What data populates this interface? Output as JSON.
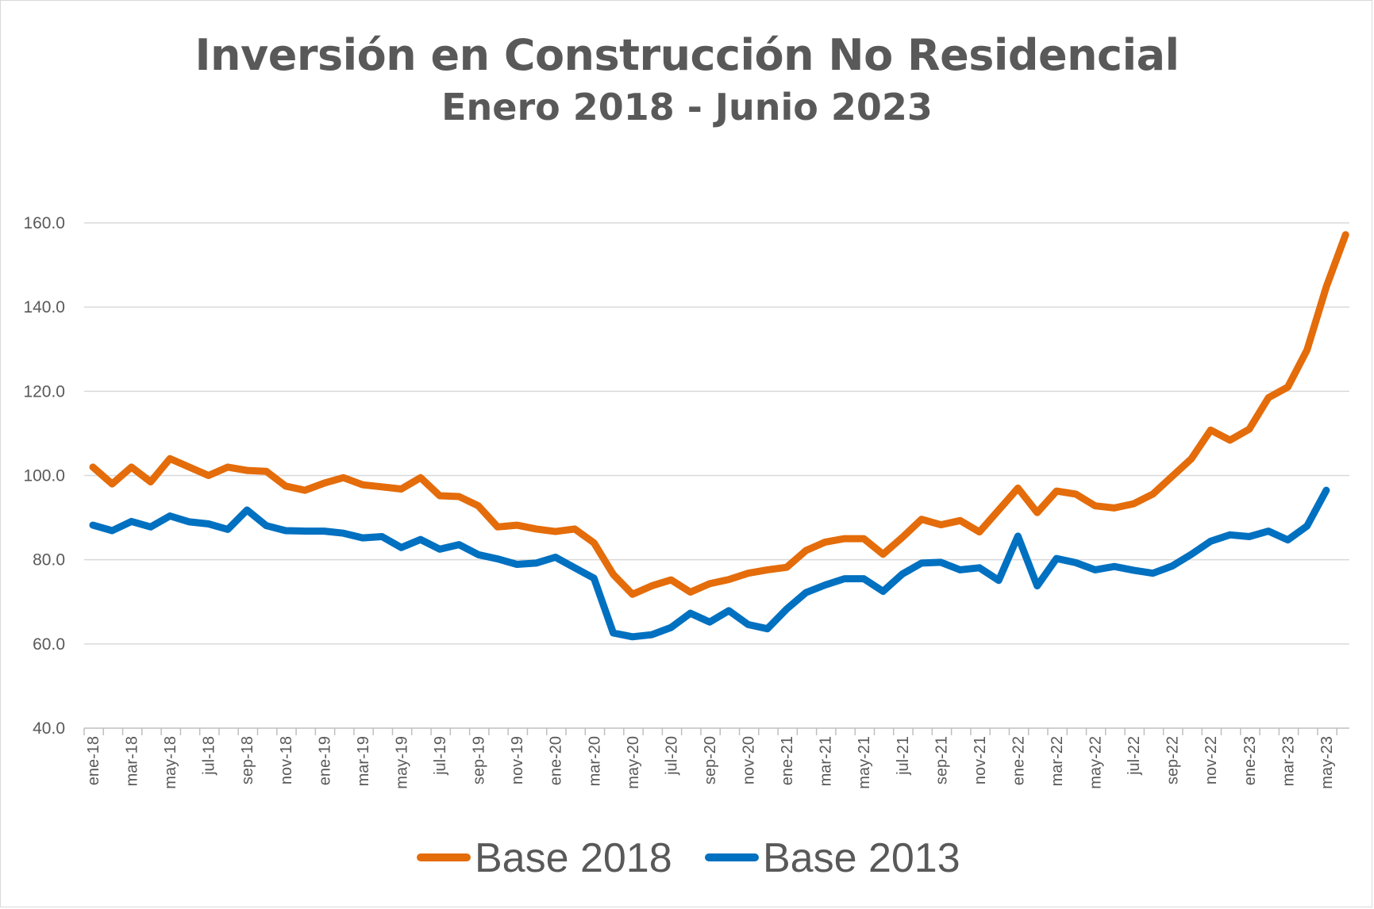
{
  "chart_data": {
    "type": "line",
    "title": "Inversión en Construcción No Residencial",
    "subtitle": "Enero 2018 - Junio 2023",
    "xlabel": "",
    "ylabel": "",
    "ylim": [
      40,
      160
    ],
    "yticks": [
      "40.0",
      "60.0",
      "80.0",
      "100.0",
      "120.0",
      "140.0",
      "160.0"
    ],
    "grid": true,
    "legend_position": "bottom",
    "tick_labels": [
      "ene-18",
      "mar-18",
      "may-18",
      "jul-18",
      "sep-18",
      "nov-18",
      "ene-19",
      "mar-19",
      "may-19",
      "jul-19",
      "sep-19",
      "nov-19",
      "ene-20",
      "mar-20",
      "may-20",
      "jul-20",
      "sep-20",
      "nov-20",
      "ene-21",
      "mar-21",
      "may-21",
      "jul-21",
      "sep-21",
      "nov-21",
      "ene-22",
      "mar-22",
      "may-22",
      "jul-22",
      "sep-22",
      "nov-22",
      "ene-23",
      "mar-23",
      "may-23"
    ],
    "series": [
      {
        "name": "Base 2018",
        "color": "#E46C0A",
        "values": [
          102.0,
          98.0,
          102.0,
          98.5,
          104.0,
          102.0,
          100.0,
          102.0,
          101.2,
          101.0,
          97.5,
          96.5,
          98.2,
          99.5,
          97.8,
          97.3,
          96.8,
          99.5,
          95.2,
          95.0,
          92.8,
          87.8,
          88.2,
          87.3,
          86.7,
          87.3,
          84.0,
          76.5,
          71.8,
          73.8,
          75.2,
          72.3,
          74.3,
          75.3,
          76.8,
          77.6,
          78.2,
          82.2,
          84.2,
          85.0,
          85.0,
          81.3,
          85.3,
          89.6,
          88.3,
          89.3,
          86.6,
          91.8,
          97.0,
          91.2,
          96.3,
          95.6,
          92.8,
          92.3,
          93.3,
          95.6,
          99.8,
          104.0,
          110.8,
          108.4,
          111.0,
          118.5,
          121.0,
          129.8,
          144.8,
          157.2
        ]
      },
      {
        "name": "Base 2013",
        "color": "#0070C0",
        "values": [
          88.2,
          86.9,
          89.1,
          87.8,
          90.4,
          89.0,
          88.5,
          87.2,
          91.8,
          88.1,
          86.9,
          86.8,
          86.8,
          86.3,
          85.2,
          85.5,
          82.9,
          84.8,
          82.5,
          83.6,
          81.2,
          80.2,
          78.9,
          79.2,
          80.6,
          78.1,
          75.6,
          62.6,
          61.7,
          62.2,
          63.9,
          67.3,
          65.2,
          67.9,
          64.6,
          63.6,
          68.3,
          72.2,
          74.0,
          75.5,
          75.5,
          72.5,
          76.6,
          79.2,
          79.4,
          77.6,
          78.1,
          75.1,
          85.6,
          73.8,
          80.3,
          79.3,
          77.6,
          78.4,
          77.5,
          76.8,
          78.5,
          81.3,
          84.4,
          85.9,
          85.5,
          86.8,
          84.7,
          88.0,
          96.5
        ]
      }
    ]
  }
}
